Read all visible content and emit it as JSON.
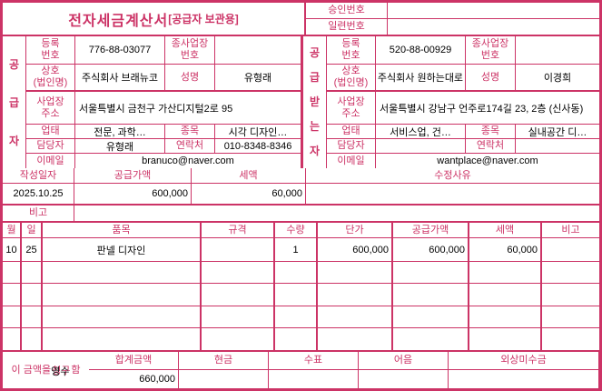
{
  "colors": {
    "accent": "#cc3366",
    "value_text": "#000000",
    "background": "#ffffff"
  },
  "header": {
    "title": "전자세금계산서",
    "title_suffix": "[공급자 보관용]",
    "approval_label": "승인번호",
    "approval_value": "",
    "serial_label": "일련번호",
    "serial_value": ""
  },
  "supplier": {
    "side_label": "공급자",
    "reg_label": "등록\n번호",
    "reg_value": "776-88-03077",
    "subbiz_label": "종사업장\n번호",
    "subbiz_value": "",
    "name_label": "상호\n(법인명)",
    "name_value": "주식회사 브래뉴코",
    "ceo_label": "성명",
    "ceo_value": "유형래",
    "addr_label": "사업장\n주소",
    "addr_value": "서울특별시 금천구 가산디지털2로 95",
    "biztype_label": "업태",
    "biztype_value": "전문, 과학…",
    "bizitem_label": "종목",
    "bizitem_value": "시각 디자인…",
    "contact_label": "담당자",
    "contact_value": "유형래",
    "phone_label": "연락처",
    "phone_value": "010-8348-8346",
    "email_label": "이메일",
    "email_value": "branuco@naver.com"
  },
  "buyer": {
    "side_label": "공급받는자",
    "reg_label": "등록\n번호",
    "reg_value": "520-88-00929",
    "subbiz_label": "종사업장\n번호",
    "subbiz_value": "",
    "name_label": "상호\n(법인명)",
    "name_value": "주식회사 원하는대로",
    "ceo_label": "성명",
    "ceo_value": "이경희",
    "addr_label": "사업장\n주소",
    "addr_value": "서울특별시 강남구 언주로174길 23, 2층 (신사동)",
    "biztype_label": "업태",
    "biztype_value": "서비스업, 건…",
    "bizitem_label": "종목",
    "bizitem_value": "실내공간 디…",
    "contact_label": "담당자",
    "contact_value": "",
    "phone_label": "연락처",
    "phone_value": "",
    "email_label": "이메일",
    "email_value": "wantplace@naver.com"
  },
  "summary": {
    "date_label": "작성일자",
    "date_value": "2025.10.25",
    "supply_label": "공급가액",
    "supply_value": "600,000",
    "tax_label": "세액",
    "tax_value": "60,000",
    "reason_label": "수정사유",
    "reason_value": "",
    "note_label": "비고",
    "note_value": ""
  },
  "items": {
    "headers": {
      "month": "월",
      "day": "일",
      "name": "품목",
      "spec": "규격",
      "qty": "수량",
      "unit_price": "단가",
      "supply": "공급가액",
      "tax": "세액",
      "note": "비고"
    },
    "rows": [
      {
        "month": "10",
        "day": "25",
        "name": "판넬 디자인",
        "spec": "",
        "qty": "1",
        "unit_price": "600,000",
        "supply": "600,000",
        "tax": "60,000",
        "note": ""
      }
    ],
    "empty_row_count": 4
  },
  "footer": {
    "total_label": "합계금액",
    "total_value": "660,000",
    "cash_label": "현금",
    "cash_value": "",
    "check_label": "수표",
    "check_value": "",
    "bill_label": "어음",
    "bill_value": "",
    "credit_label": "외상미수금",
    "credit_value": "",
    "receipt_prefix": "이 금액을",
    "receipt_overlay_pink": "청구",
    "receipt_overlay_black": "영수",
    "receipt_suffix": "함"
  }
}
